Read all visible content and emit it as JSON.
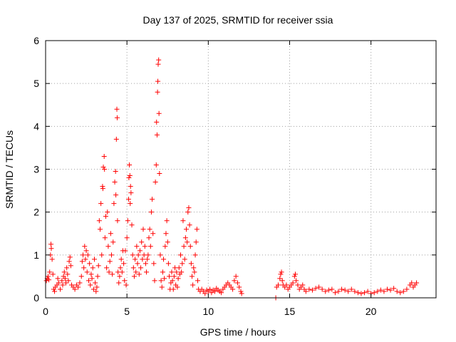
{
  "chart_data": {
    "type": "scatter",
    "title": "Day 137 of 2025, SRMTID for receiver ssia",
    "xlabel": "GPS time / hours",
    "ylabel": "SRMTID / TECUs",
    "xlim": [
      0,
      24
    ],
    "ylim": [
      0,
      6
    ],
    "xticks": [
      0,
      5,
      10,
      15,
      20
    ],
    "yticks": [
      0,
      1,
      2,
      3,
      4,
      5,
      6
    ],
    "xtick_labels": [
      "0",
      "5",
      "10",
      "15",
      "20"
    ],
    "ytick_labels": [
      "0",
      "1",
      "2",
      "3",
      "4",
      "5",
      "6"
    ],
    "grid": true,
    "legend": "none",
    "marker": "+",
    "series": [
      {
        "name": "SRMTID",
        "color": "#ff0000",
        "points": [
          [
            0.05,
            0.4
          ],
          [
            0.1,
            0.45
          ],
          [
            0.15,
            0.5
          ],
          [
            0.2,
            0.42
          ],
          [
            0.25,
            0.6
          ],
          [
            0.3,
            1.0
          ],
          [
            0.33,
            1.25
          ],
          [
            0.35,
            1.15
          ],
          [
            0.4,
            0.9
          ],
          [
            0.45,
            0.55
          ],
          [
            0.5,
            0.2
          ],
          [
            0.55,
            0.15
          ],
          [
            0.6,
            0.25
          ],
          [
            0.7,
            0.3
          ],
          [
            0.75,
            0.45
          ],
          [
            0.8,
            0.35
          ],
          [
            0.9,
            0.2
          ],
          [
            1.0,
            0.4
          ],
          [
            1.05,
            0.3
          ],
          [
            1.1,
            0.5
          ],
          [
            1.15,
            0.6
          ],
          [
            1.2,
            0.45
          ],
          [
            1.25,
            0.35
          ],
          [
            1.3,
            0.7
          ],
          [
            1.35,
            0.55
          ],
          [
            1.4,
            0.4
          ],
          [
            1.45,
            0.85
          ],
          [
            1.5,
            0.95
          ],
          [
            1.55,
            0.75
          ],
          [
            1.6,
            0.3
          ],
          [
            1.7,
            0.25
          ],
          [
            1.8,
            0.2
          ],
          [
            1.9,
            0.3
          ],
          [
            2.0,
            0.25
          ],
          [
            2.1,
            0.35
          ],
          [
            2.2,
            0.5
          ],
          [
            2.25,
            0.85
          ],
          [
            2.3,
            1.0
          ],
          [
            2.35,
            0.7
          ],
          [
            2.4,
            1.2
          ],
          [
            2.45,
            0.9
          ],
          [
            2.5,
            1.1
          ],
          [
            2.55,
            0.6
          ],
          [
            2.6,
            1.0
          ],
          [
            2.65,
            0.4
          ],
          [
            2.7,
            0.8
          ],
          [
            2.75,
            0.3
          ],
          [
            2.8,
            0.55
          ],
          [
            2.85,
            0.45
          ],
          [
            2.9,
            0.7
          ],
          [
            2.95,
            0.2
          ],
          [
            3.0,
            0.9
          ],
          [
            3.05,
            0.35
          ],
          [
            3.1,
            0.15
          ],
          [
            3.15,
            0.25
          ],
          [
            3.2,
            0.5
          ],
          [
            3.25,
            0.75
          ],
          [
            3.3,
            1.8
          ],
          [
            3.35,
            1.6
          ],
          [
            3.4,
            2.2
          ],
          [
            3.45,
            1.0
          ],
          [
            3.5,
            2.6
          ],
          [
            3.52,
            2.55
          ],
          [
            3.55,
            3.05
          ],
          [
            3.6,
            3.3
          ],
          [
            3.62,
            3.0
          ],
          [
            3.65,
            1.4
          ],
          [
            3.7,
            1.9
          ],
          [
            3.75,
            0.7
          ],
          [
            3.8,
            2.0
          ],
          [
            3.85,
            1.2
          ],
          [
            3.9,
            0.6
          ],
          [
            3.95,
            0.85
          ],
          [
            4.0,
            1.5
          ],
          [
            4.05,
            1.0
          ],
          [
            4.1,
            0.55
          ],
          [
            4.15,
            1.3
          ],
          [
            4.2,
            2.2
          ],
          [
            4.25,
            2.7
          ],
          [
            4.3,
            2.95
          ],
          [
            4.32,
            2.4
          ],
          [
            4.35,
            3.7
          ],
          [
            4.38,
            4.4
          ],
          [
            4.4,
            4.2
          ],
          [
            4.42,
            1.8
          ],
          [
            4.45,
            0.6
          ],
          [
            4.5,
            0.35
          ],
          [
            4.55,
            0.5
          ],
          [
            4.6,
            0.7
          ],
          [
            4.65,
            0.9
          ],
          [
            4.7,
            0.6
          ],
          [
            4.75,
            1.1
          ],
          [
            4.8,
            0.8
          ],
          [
            4.85,
            0.4
          ],
          [
            4.9,
            1.1
          ],
          [
            4.95,
            0.3
          ],
          [
            5.0,
            1.4
          ],
          [
            5.05,
            1.8
          ],
          [
            5.1,
            2.3
          ],
          [
            5.12,
            2.8
          ],
          [
            5.15,
            3.1
          ],
          [
            5.18,
            2.85
          ],
          [
            5.2,
            2.2
          ],
          [
            5.22,
            2.6
          ],
          [
            5.25,
            2.45
          ],
          [
            5.3,
            1.7
          ],
          [
            5.35,
            1.0
          ],
          [
            5.4,
            0.7
          ],
          [
            5.45,
            0.5
          ],
          [
            5.5,
            0.9
          ],
          [
            5.55,
            0.6
          ],
          [
            5.6,
            1.2
          ],
          [
            5.65,
            0.8
          ],
          [
            5.7,
            1.0
          ],
          [
            5.75,
            0.55
          ],
          [
            5.8,
            1.1
          ],
          [
            5.85,
            0.7
          ],
          [
            5.9,
            1.3
          ],
          [
            5.95,
            0.9
          ],
          [
            6.0,
            1.6
          ],
          [
            6.05,
            1.0
          ],
          [
            6.1,
            1.2
          ],
          [
            6.15,
            0.8
          ],
          [
            6.2,
            0.6
          ],
          [
            6.25,
            0.9
          ],
          [
            6.3,
            1.0
          ],
          [
            6.35,
            1.4
          ],
          [
            6.4,
            1.6
          ],
          [
            6.45,
            1.2
          ],
          [
            6.5,
            2.0
          ],
          [
            6.55,
            2.3
          ],
          [
            6.6,
            1.5
          ],
          [
            6.65,
            0.8
          ],
          [
            6.7,
            0.4
          ],
          [
            6.75,
            2.7
          ],
          [
            6.8,
            3.1
          ],
          [
            6.82,
            4.1
          ],
          [
            6.85,
            3.8
          ],
          [
            6.88,
            4.8
          ],
          [
            6.9,
            5.05
          ],
          [
            6.92,
            5.45
          ],
          [
            6.95,
            5.55
          ],
          [
            6.97,
            4.3
          ],
          [
            7.0,
            2.9
          ],
          [
            7.05,
            1.0
          ],
          [
            7.1,
            0.4
          ],
          [
            7.15,
            0.25
          ],
          [
            7.2,
            0.6
          ],
          [
            7.25,
            0.9
          ],
          [
            7.3,
            0.45
          ],
          [
            7.35,
            1.2
          ],
          [
            7.4,
            1.5
          ],
          [
            7.45,
            1.8
          ],
          [
            7.5,
            1.3
          ],
          [
            7.55,
            0.8
          ],
          [
            7.6,
            0.5
          ],
          [
            7.65,
            0.2
          ],
          [
            7.7,
            0.35
          ],
          [
            7.75,
            0.6
          ],
          [
            7.8,
            0.4
          ],
          [
            7.85,
            0.2
          ],
          [
            7.9,
            0.5
          ],
          [
            7.95,
            0.7
          ],
          [
            8.0,
            0.3
          ],
          [
            8.05,
            0.6
          ],
          [
            8.1,
            0.25
          ],
          [
            8.15,
            0.45
          ],
          [
            8.2,
            0.7
          ],
          [
            8.25,
            0.55
          ],
          [
            8.3,
            1.0
          ],
          [
            8.35,
            0.6
          ],
          [
            8.4,
            0.8
          ],
          [
            8.45,
            1.8
          ],
          [
            8.5,
            1.2
          ],
          [
            8.55,
            0.9
          ],
          [
            8.6,
            1.4
          ],
          [
            8.65,
            1.6
          ],
          [
            8.7,
            1.3
          ],
          [
            8.75,
            2.0
          ],
          [
            8.8,
            2.1
          ],
          [
            8.85,
            1.7
          ],
          [
            8.9,
            1.2
          ],
          [
            8.95,
            0.8
          ],
          [
            9.0,
            0.5
          ],
          [
            9.05,
            0.3
          ],
          [
            9.1,
            0.7
          ],
          [
            9.15,
            0.6
          ],
          [
            9.2,
            1.0
          ],
          [
            9.25,
            1.3
          ],
          [
            9.3,
            1.6
          ],
          [
            9.35,
            0.4
          ],
          [
            9.4,
            0.2
          ],
          [
            9.5,
            0.15
          ],
          [
            9.6,
            0.2
          ],
          [
            9.7,
            0.15
          ],
          [
            9.8,
            0.1
          ],
          [
            9.9,
            0.18
          ],
          [
            10.0,
            0.15
          ],
          [
            10.1,
            0.2
          ],
          [
            10.2,
            0.12
          ],
          [
            10.3,
            0.18
          ],
          [
            10.4,
            0.15
          ],
          [
            10.5,
            0.22
          ],
          [
            10.6,
            0.18
          ],
          [
            10.7,
            0.15
          ],
          [
            10.8,
            0.12
          ],
          [
            10.9,
            0.2
          ],
          [
            11.0,
            0.25
          ],
          [
            11.1,
            0.3
          ],
          [
            11.2,
            0.35
          ],
          [
            11.3,
            0.3
          ],
          [
            11.4,
            0.25
          ],
          [
            11.5,
            0.2
          ],
          [
            11.6,
            0.4
          ],
          [
            11.7,
            0.5
          ],
          [
            11.8,
            0.35
          ],
          [
            11.9,
            0.25
          ],
          [
            12.0,
            0.15
          ],
          [
            12.05,
            0.1
          ],
          [
            14.15,
            0.0
          ],
          [
            14.2,
            0.25
          ],
          [
            14.3,
            0.3
          ],
          [
            14.4,
            0.45
          ],
          [
            14.45,
            0.55
          ],
          [
            14.5,
            0.6
          ],
          [
            14.55,
            0.4
          ],
          [
            14.6,
            0.3
          ],
          [
            14.7,
            0.25
          ],
          [
            14.8,
            0.3
          ],
          [
            14.9,
            0.2
          ],
          [
            15.0,
            0.25
          ],
          [
            15.1,
            0.3
          ],
          [
            15.2,
            0.35
          ],
          [
            15.3,
            0.5
          ],
          [
            15.35,
            0.55
          ],
          [
            15.4,
            0.4
          ],
          [
            15.5,
            0.3
          ],
          [
            15.6,
            0.2
          ],
          [
            15.7,
            0.25
          ],
          [
            15.8,
            0.3
          ],
          [
            15.9,
            0.2
          ],
          [
            16.0,
            0.15
          ],
          [
            16.2,
            0.2
          ],
          [
            16.4,
            0.18
          ],
          [
            16.6,
            0.22
          ],
          [
            16.8,
            0.25
          ],
          [
            17.0,
            0.2
          ],
          [
            17.2,
            0.15
          ],
          [
            17.4,
            0.18
          ],
          [
            17.6,
            0.2
          ],
          [
            17.8,
            0.12
          ],
          [
            18.0,
            0.15
          ],
          [
            18.2,
            0.2
          ],
          [
            18.4,
            0.18
          ],
          [
            18.6,
            0.15
          ],
          [
            18.8,
            0.2
          ],
          [
            19.0,
            0.15
          ],
          [
            19.2,
            0.12
          ],
          [
            19.4,
            0.1
          ],
          [
            19.6,
            0.12
          ],
          [
            19.8,
            0.15
          ],
          [
            20.0,
            0.1
          ],
          [
            20.2,
            0.12
          ],
          [
            20.4,
            0.15
          ],
          [
            20.6,
            0.18
          ],
          [
            20.8,
            0.15
          ],
          [
            21.0,
            0.2
          ],
          [
            21.2,
            0.18
          ],
          [
            21.4,
            0.22
          ],
          [
            21.6,
            0.15
          ],
          [
            21.8,
            0.12
          ],
          [
            22.0,
            0.15
          ],
          [
            22.2,
            0.2
          ],
          [
            22.4,
            0.3
          ],
          [
            22.5,
            0.35
          ],
          [
            22.6,
            0.25
          ],
          [
            22.7,
            0.3
          ],
          [
            22.8,
            0.35
          ]
        ]
      }
    ]
  }
}
